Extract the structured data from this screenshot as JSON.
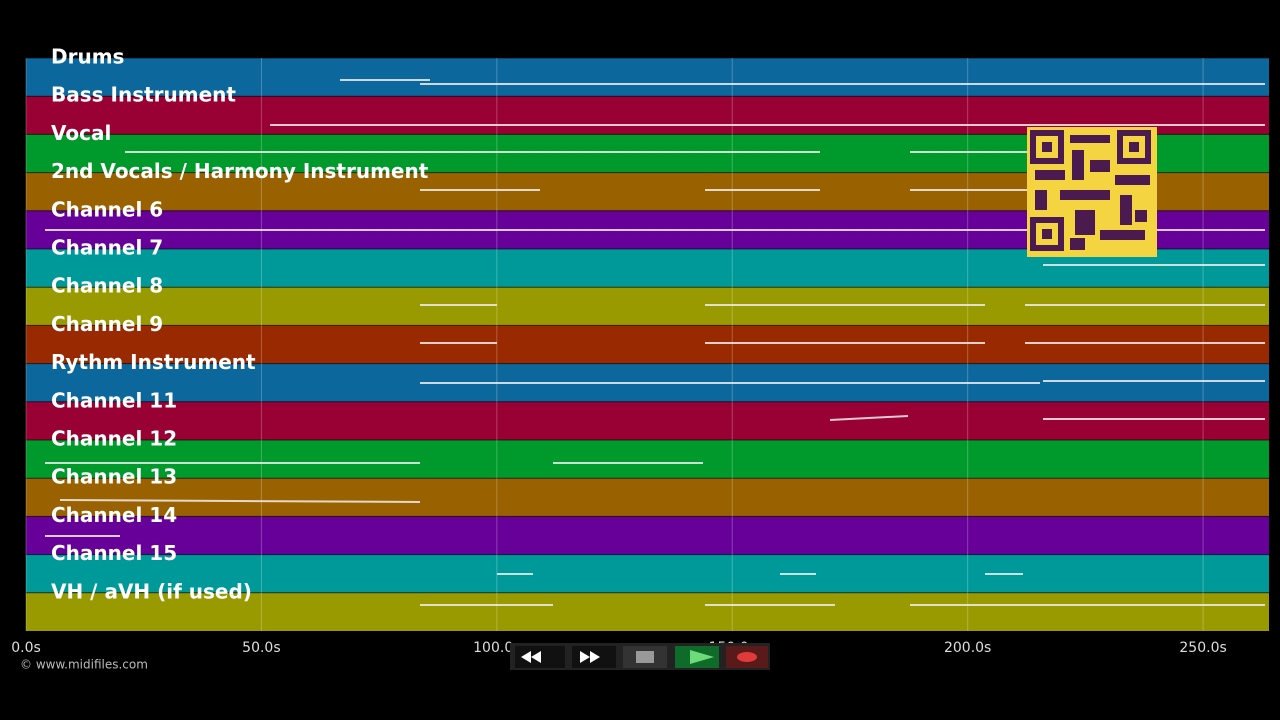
{
  "tracks": [
    {
      "name": "Drums",
      "color": "#0b679c"
    },
    {
      "name": "Bass Instrument",
      "color": "#990033"
    },
    {
      "name": "Vocal",
      "color": "#00992b"
    },
    {
      "name": "2nd Vocals / Harmony Instrument",
      "color": "#996100"
    },
    {
      "name": "Channel 6",
      "color": "#660099"
    },
    {
      "name": "Channel 7",
      "color": "#009999"
    },
    {
      "name": "Channel 8",
      "color": "#999900"
    },
    {
      "name": "Channel 9",
      "color": "#992900"
    },
    {
      "name": "Rythm Instrument",
      "color": "#0b679c"
    },
    {
      "name": "Channel 11",
      "color": "#990033"
    },
    {
      "name": "Channel 12",
      "color": "#00992b"
    },
    {
      "name": "Channel 13",
      "color": "#996100"
    },
    {
      "name": "Channel 14",
      "color": "#660099"
    },
    {
      "name": "Channel 15",
      "color": "#009999"
    },
    {
      "name": "VH / aVH (if used)",
      "color": "#999900"
    }
  ],
  "timeline": {
    "xlim": [
      0,
      264
    ],
    "ticks": [
      {
        "value": 0,
        "label": "0.0s"
      },
      {
        "value": 50,
        "label": "50.0s"
      },
      {
        "value": 100,
        "label": "100.0s"
      },
      {
        "value": 150,
        "label": "150.0s"
      },
      {
        "value": 200,
        "label": "200.0s"
      },
      {
        "value": 250,
        "label": "250.0s"
      }
    ]
  },
  "footer": {
    "copyright": "© www.midifiles.com"
  }
}
